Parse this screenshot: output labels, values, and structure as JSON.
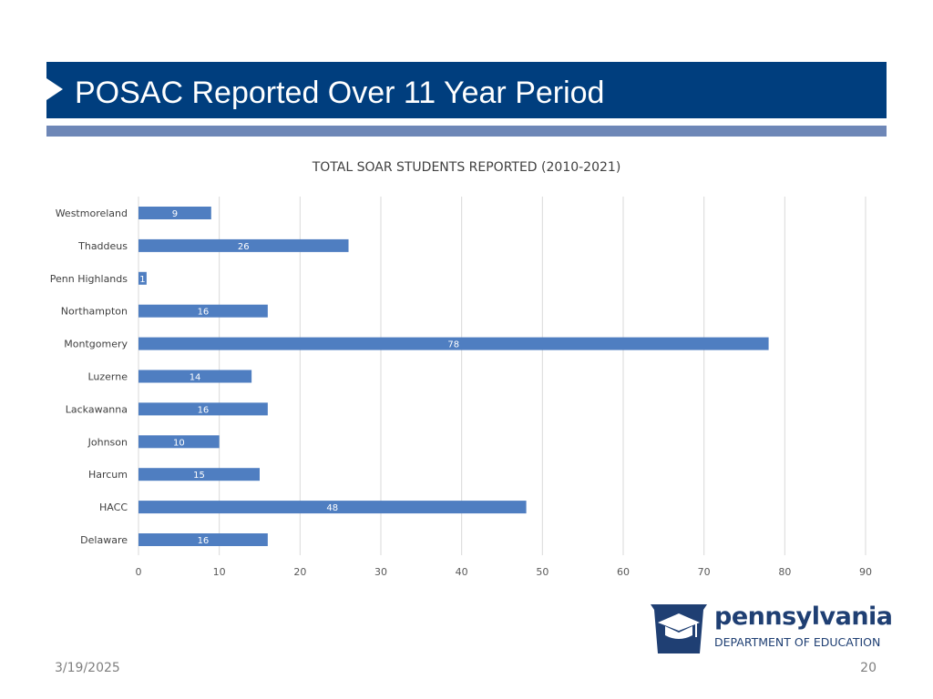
{
  "slide": {
    "title": "POSAC Reported Over 11 Year Period",
    "date": "3/19/2025",
    "page_number": "20"
  },
  "logo": {
    "name": "pennsylvania",
    "subtitle": "DEPARTMENT OF EDUCATION"
  },
  "colors": {
    "title_bar": "#003e7e",
    "stripe": "#6e87b7",
    "bar": "#4f7ec1"
  },
  "chart_data": {
    "type": "bar",
    "orientation": "horizontal",
    "title": "TOTAL SOAR STUDENTS REPORTED (2010-2021)",
    "categories": [
      "Westmoreland",
      "Thaddeus",
      "Penn Highlands",
      "Northampton",
      "Montgomery",
      "Luzerne",
      "Lackawanna",
      "Johnson",
      "Harcum",
      "HACC",
      "Delaware"
    ],
    "values": [
      9,
      26,
      1,
      16,
      78,
      14,
      16,
      10,
      15,
      48,
      16
    ],
    "xlim": [
      0,
      90
    ],
    "xticks": [
      0,
      10,
      20,
      30,
      40,
      50,
      60,
      70,
      80,
      90
    ],
    "grid": true,
    "data_labels": true
  }
}
